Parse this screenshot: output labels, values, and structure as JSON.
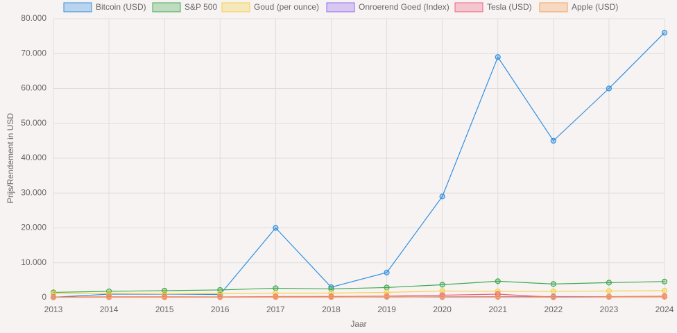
{
  "chart_data": {
    "type": "line",
    "x_label": "Jaar",
    "y_label": "Prijs/Rendement in USD",
    "categories": [
      "2013",
      "2014",
      "2015",
      "2016",
      "2017",
      "2018",
      "2019",
      "2020",
      "2021",
      "2022",
      "2023",
      "2024"
    ],
    "series": [
      {
        "name": "Bitcoin (USD)",
        "color": "#2f8fe0",
        "values": [
          100,
          1000,
          1000,
          900,
          20000,
          3000,
          7200,
          29000,
          69000,
          45000,
          60000,
          76000
        ]
      },
      {
        "name": "S&P 500",
        "color": "#3faa4f",
        "values": [
          1500,
          1800,
          2000,
          2200,
          2700,
          2500,
          2900,
          3700,
          4700,
          3900,
          4300,
          4600
        ]
      },
      {
        "name": "Goud (per ounce)",
        "color": "#f5d142",
        "values": [
          1200,
          1200,
          1100,
          1200,
          1300,
          1300,
          1500,
          1900,
          1800,
          1800,
          1900,
          2000
        ]
      },
      {
        "name": "Onroerend Goed (Index)",
        "color": "#9168f0",
        "values": [
          150,
          160,
          170,
          180,
          200,
          210,
          220,
          240,
          280,
          300,
          290,
          300
        ]
      },
      {
        "name": "Tesla (USD)",
        "color": "#f0607e",
        "values": [
          150,
          220,
          240,
          210,
          310,
          330,
          420,
          700,
          1000,
          120,
          250,
          400
        ]
      },
      {
        "name": "Apple (USD)",
        "color": "#f5a053",
        "values": [
          80,
          110,
          105,
          115,
          170,
          160,
          290,
          130,
          180,
          130,
          190,
          230
        ]
      }
    ],
    "ylim": [
      0,
      80000
    ],
    "yticks": [
      0,
      {
        "value": 10000,
        "label": "10.000"
      },
      {
        "value": 20000,
        "label": "20.000"
      },
      {
        "value": 30000,
        "label": "30.000"
      },
      {
        "value": 40000,
        "label": "40.000"
      },
      {
        "value": 50000,
        "label": "50.000"
      },
      {
        "value": 60000,
        "label": "60.000"
      },
      {
        "value": 70000,
        "label": "70.000"
      },
      {
        "value": 80000,
        "label": "80.000"
      }
    ],
    "grid": true,
    "legend": "top"
  }
}
